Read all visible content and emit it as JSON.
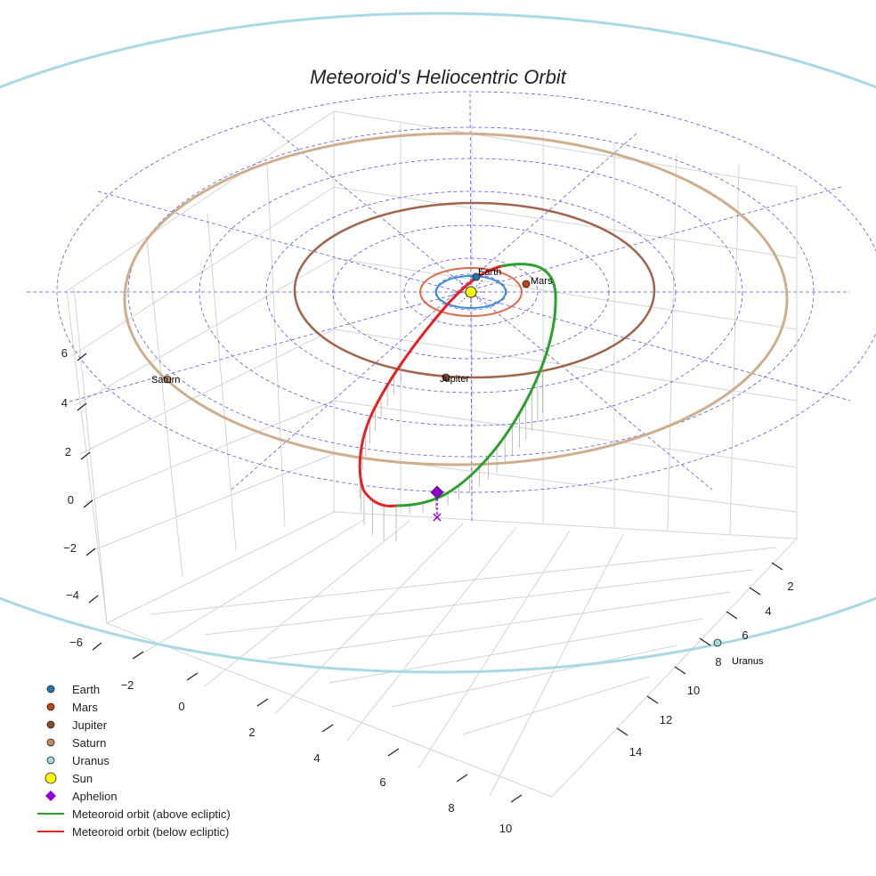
{
  "chart_data": {
    "type": "3d-orbit",
    "title": "Meteoroid's Heliocentric Orbit",
    "x_axis": {
      "ticks": [
        -2,
        0,
        2,
        4,
        6,
        8,
        10
      ]
    },
    "y_axis": {
      "ticks": [
        2,
        4,
        6,
        8,
        10,
        12,
        14
      ]
    },
    "z_axis": {
      "ticks": [
        6,
        4,
        2,
        0,
        -2,
        -4,
        -6
      ]
    },
    "planets": [
      {
        "name": "Earth",
        "label": "Earth",
        "semi_major_au": 1.0,
        "color": "#1f77b4",
        "orbit_color": "#3b8fd0"
      },
      {
        "name": "Mars",
        "label": "Mars",
        "semi_major_au": 1.52,
        "color": "#c1440e",
        "orbit_color": "#e0694a"
      },
      {
        "name": "Jupiter",
        "label": "Jupiter",
        "semi_major_au": 5.2,
        "color": "#8b4a2b",
        "orbit_color": "#a0644a"
      },
      {
        "name": "Saturn",
        "label": "Saturn",
        "semi_major_au": 9.5,
        "color": "#c08a60",
        "orbit_color": "#cfae8e"
      },
      {
        "name": "Uranus",
        "label": "Uranus",
        "semi_major_au": 19.2,
        "color": "#9fd8e0",
        "orbit_color": "#a9d9e4"
      }
    ],
    "sun": {
      "name": "Sun",
      "color": "#ffff00"
    },
    "aphelion": {
      "name": "Aphelion",
      "color": "#9400d3"
    },
    "meteoroid_orbit": [
      {
        "name": "Meteoroid orbit (above ecliptic)",
        "color": "#2ca02c"
      },
      {
        "name": "Meteoroid orbit (below ecliptic)",
        "color": "#e62020"
      }
    ]
  },
  "legend": [
    {
      "label": "Earth",
      "symbol": "dot",
      "color": "#1f77b4"
    },
    {
      "label": "Mars",
      "symbol": "dot",
      "color": "#c1440e"
    },
    {
      "label": "Jupiter",
      "symbol": "dot",
      "color": "#8b4a2b"
    },
    {
      "label": "Saturn",
      "symbol": "dot",
      "color": "#c08a60"
    },
    {
      "label": "Uranus",
      "symbol": "dot",
      "color": "#9fd8e0"
    },
    {
      "label": "Sun",
      "symbol": "sun",
      "color": "#ffff00"
    },
    {
      "label": "Aphelion",
      "symbol": "diamond",
      "color": "#9400d3"
    },
    {
      "label": "Meteoroid orbit (above ecliptic)",
      "symbol": "line",
      "color": "#2ca02c"
    },
    {
      "label": "Meteoroid orbit (below ecliptic)",
      "symbol": "line",
      "color": "#e62020"
    }
  ]
}
